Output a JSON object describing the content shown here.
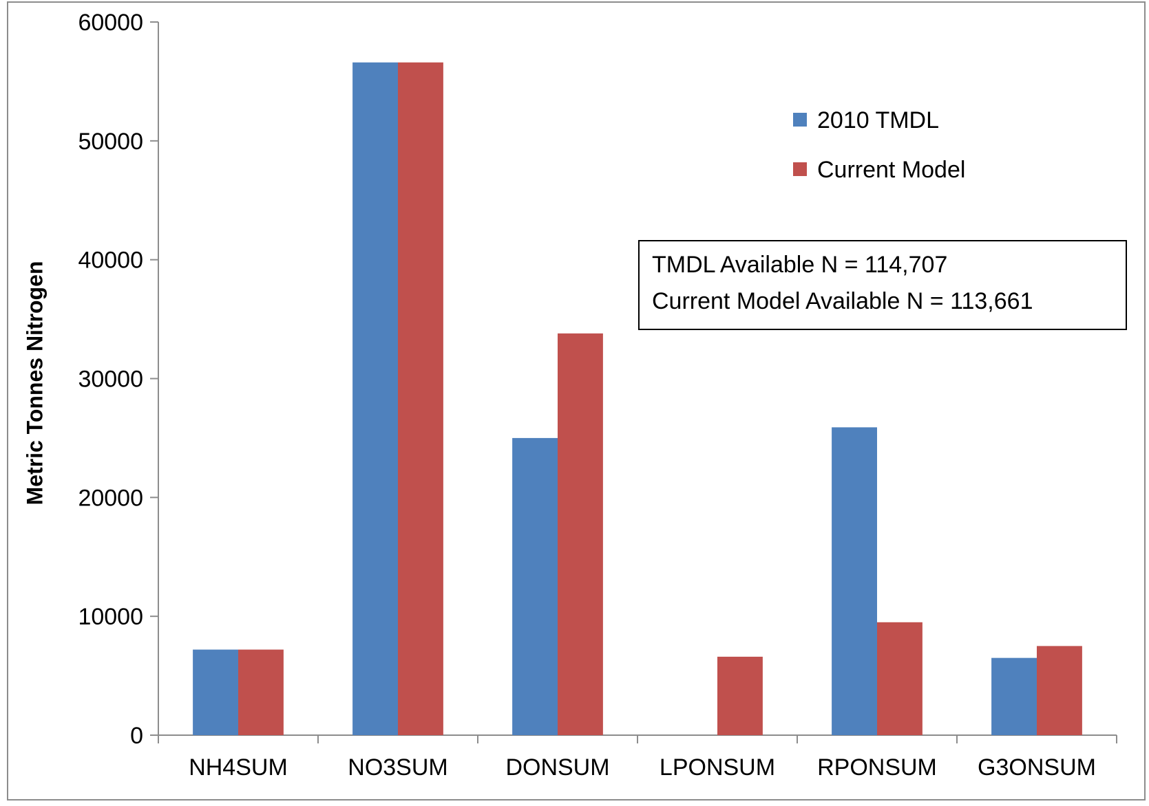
{
  "chart_data": {
    "type": "bar",
    "categories": [
      "NH4SUM",
      "NO3SUM",
      "DONSUM",
      "LPONSUM",
      "RPONSUM",
      "G3ONSUM"
    ],
    "series": [
      {
        "name": "2010 TMDL",
        "color": "#4F81BD",
        "values": [
          7200,
          56600,
          25000,
          0,
          25900,
          6500
        ]
      },
      {
        "name": "Current Model",
        "color": "#C0504D",
        "values": [
          7200,
          56600,
          33800,
          6600,
          9500,
          7500
        ]
      }
    ],
    "ylabel": "Metric Tonnes Nitrogen",
    "xlabel": "",
    "ylim": [
      0,
      60000
    ],
    "yticks": [
      "0",
      "10000",
      "20000",
      "30000",
      "40000",
      "50000",
      "60000"
    ],
    "grid": false,
    "legend_position": "top-right",
    "annotations": [
      "TMDL Available N = 114,707",
      "Current Model Available N = 113,661"
    ]
  }
}
